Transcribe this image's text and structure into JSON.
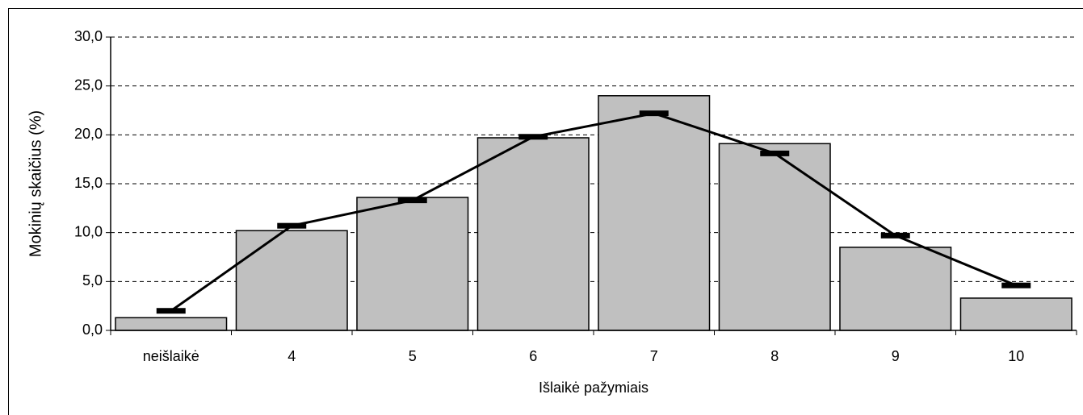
{
  "chart_data": {
    "type": "bar_line",
    "x_label": "Išlaikė pažymiais",
    "y_label": "Mokinių skaičius (%)",
    "categories": [
      "neišlaikė",
      "4",
      "5",
      "6",
      "7",
      "8",
      "9",
      "10"
    ],
    "series": [
      {
        "type": "bar",
        "color": "#c0c0c0",
        "values": [
          1.3,
          10.2,
          13.6,
          19.7,
          24.0,
          19.1,
          8.5,
          3.3
        ]
      },
      {
        "type": "line",
        "color": "#000000",
        "values": [
          2.0,
          10.7,
          13.3,
          19.8,
          22.2,
          18.1,
          9.7,
          4.6
        ]
      }
    ],
    "ylim": [
      0,
      30
    ],
    "yticks": [
      {
        "value": 0,
        "label": "0,0"
      },
      {
        "value": 5,
        "label": "5,0"
      },
      {
        "value": 10,
        "label": "10,0"
      },
      {
        "value": 15,
        "label": "15,0"
      },
      {
        "value": 20,
        "label": "20,0"
      },
      {
        "value": 25,
        "label": "25,0"
      },
      {
        "value": 30,
        "label": "30,0"
      }
    ],
    "grid": true
  }
}
